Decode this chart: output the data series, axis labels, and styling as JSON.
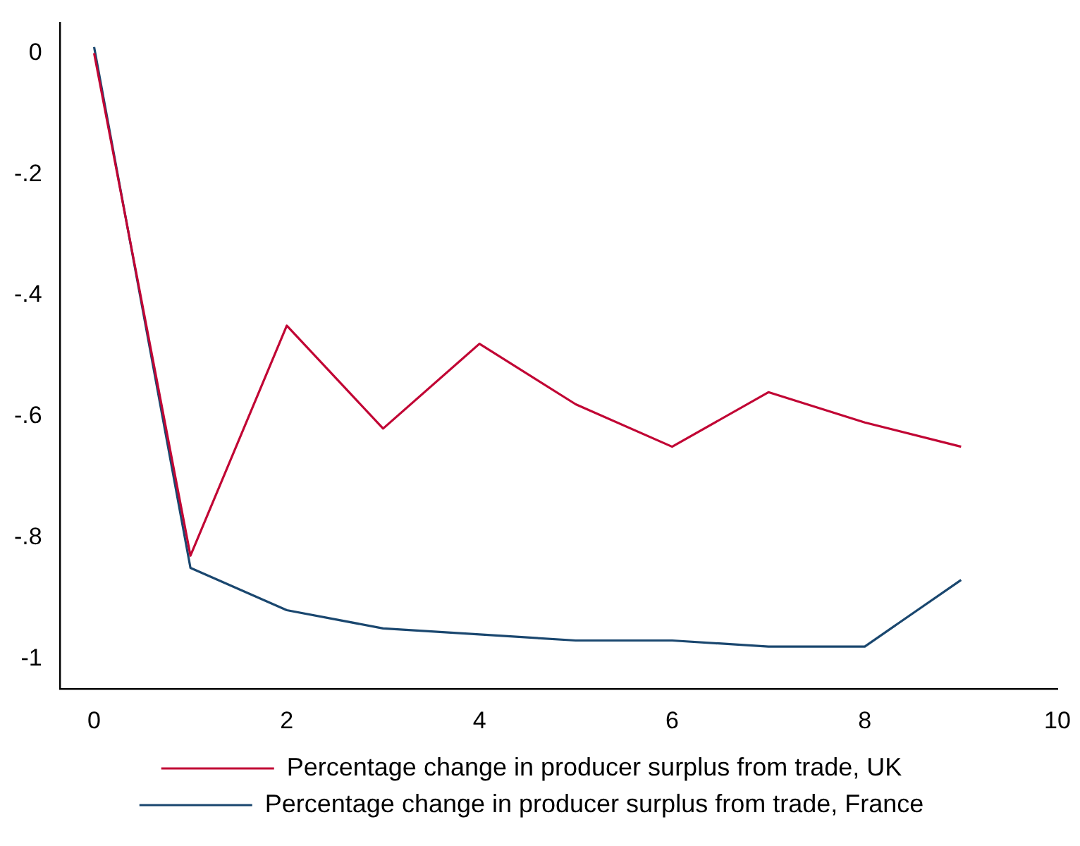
{
  "chart_data": {
    "type": "line",
    "x": [
      0,
      1,
      2,
      3,
      4,
      5,
      6,
      7,
      8,
      9
    ],
    "series": [
      {
        "name": "Percentage change in producer surplus from trade, UK",
        "color": "#c10534",
        "values": [
          0,
          -0.83,
          -0.45,
          -0.62,
          -0.48,
          -0.58,
          -0.65,
          -0.56,
          -0.61,
          -0.65
        ]
      },
      {
        "name": "Percentage change in producer surplus from trade, France",
        "color": "#1a476f",
        "values": [
          0.01,
          -0.85,
          -0.92,
          -0.95,
          -0.96,
          -0.97,
          -0.97,
          -0.98,
          -0.98,
          -0.87
        ]
      }
    ],
    "xlim": [
      -0.35,
      10
    ],
    "xticks": [
      0,
      2,
      4,
      6,
      8,
      10
    ],
    "ylim": [
      -1.05,
      0.05
    ],
    "yticks": [
      0,
      {
        "value": -0.2,
        "label": "-.2"
      },
      {
        "value": -0.4,
        "label": "-.4"
      },
      {
        "value": -0.6,
        "label": "-.6"
      },
      {
        "value": -0.8,
        "label": "-.8"
      },
      -1
    ],
    "grid": false,
    "legend": "bottom",
    "marker": "none",
    "line_style": "solid"
  }
}
